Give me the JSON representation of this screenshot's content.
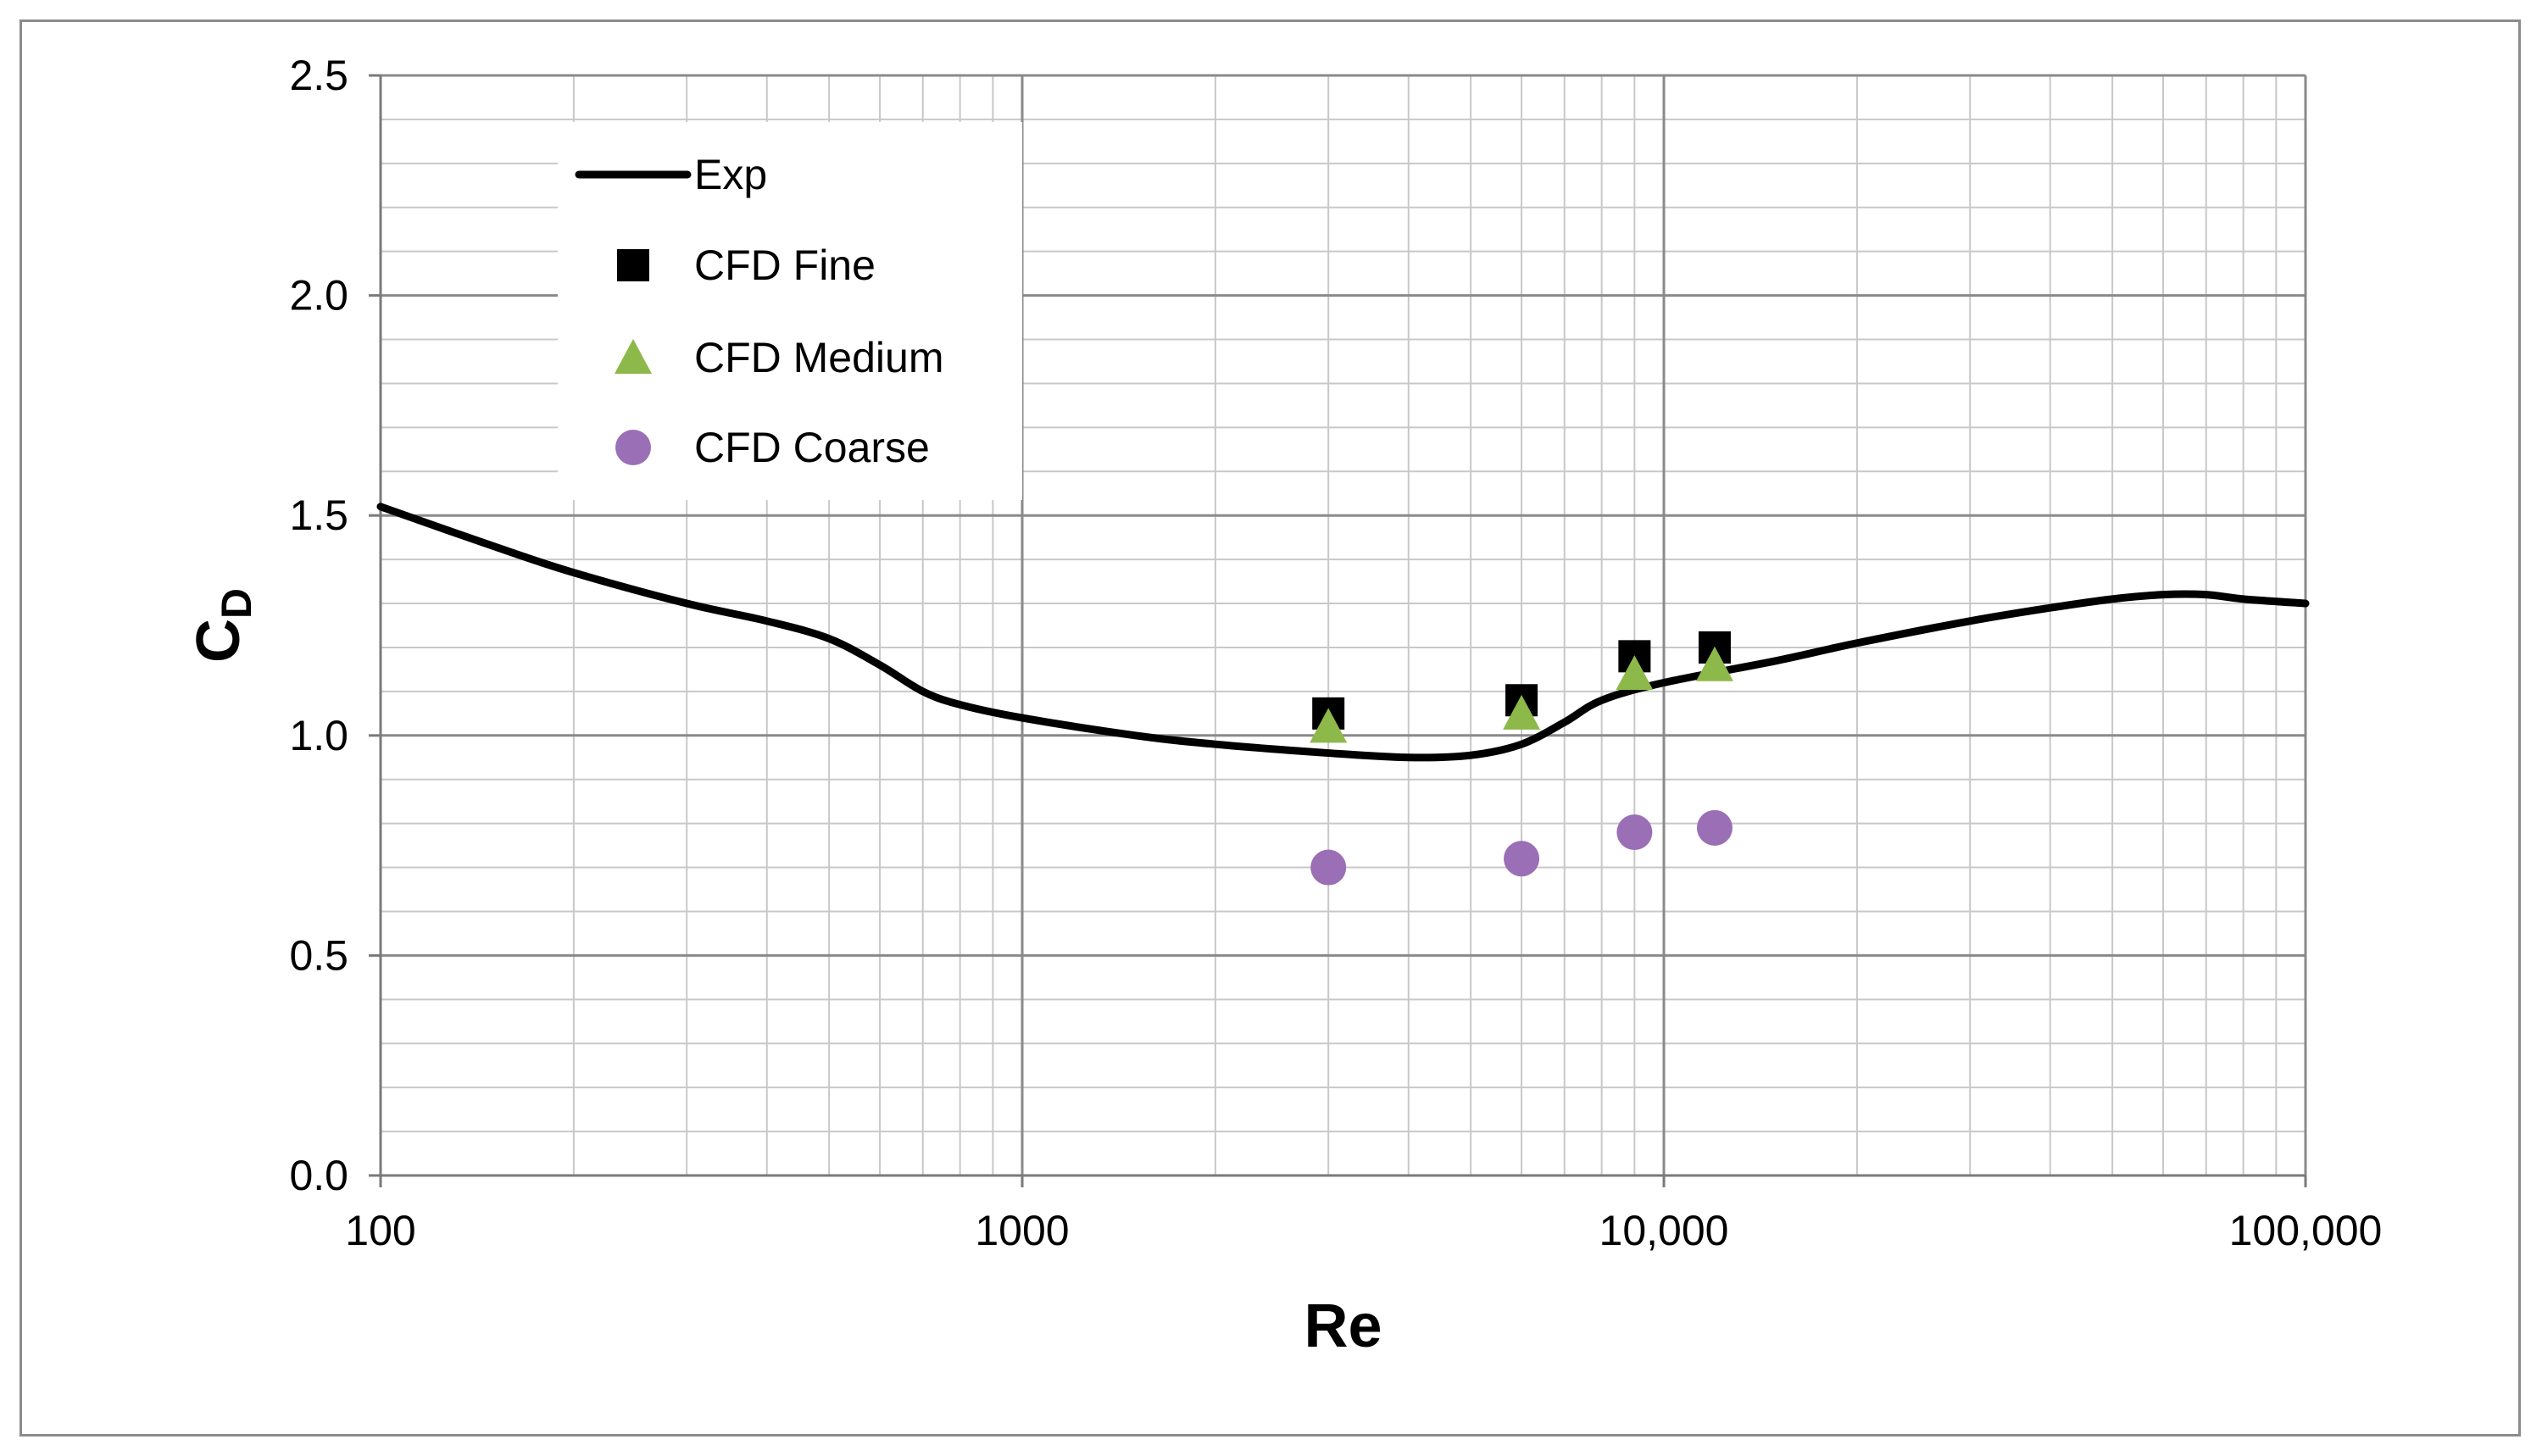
{
  "chart_data": {
    "type": "line",
    "xscale": "log",
    "xlim": [
      100,
      100000
    ],
    "ylim": [
      0,
      2.5
    ],
    "grid": true,
    "xlabel": "Re",
    "ylabel": "C",
    "ylabel_sub": "D",
    "xticks": [
      {
        "value": 100,
        "label": "100"
      },
      {
        "value": 1000,
        "label": "1000"
      },
      {
        "value": 10000,
        "label": "10,000"
      },
      {
        "value": 100000,
        "label": "100,000"
      }
    ],
    "yticks": [
      {
        "value": 0,
        "label": "0.0"
      },
      {
        "value": 0.5,
        "label": "0.5"
      },
      {
        "value": 1.0,
        "label": "1.0"
      },
      {
        "value": 1.5,
        "label": "1.5"
      },
      {
        "value": 2.0,
        "label": "2.0"
      },
      {
        "value": 2.5,
        "label": "2.5"
      }
    ],
    "legend_position": "top-left",
    "series": [
      {
        "name": "Exp",
        "kind": "line",
        "color": "#000000",
        "x": [
          100,
          150,
          200,
          300,
          400,
          500,
          600,
          700,
          800,
          1000,
          1500,
          2000,
          3000,
          4000,
          5000,
          6000,
          7000,
          8000,
          10000,
          15000,
          20000,
          30000,
          40000,
          50000,
          60000,
          70000,
          80000,
          100000
        ],
        "y": [
          1.52,
          1.43,
          1.37,
          1.3,
          1.26,
          1.22,
          1.16,
          1.1,
          1.07,
          1.04,
          1.0,
          0.98,
          0.96,
          0.95,
          0.955,
          0.98,
          1.03,
          1.08,
          1.12,
          1.17,
          1.21,
          1.26,
          1.29,
          1.31,
          1.32,
          1.32,
          1.31,
          1.3
        ]
      },
      {
        "name": "CFD Fine",
        "kind": "marker",
        "marker": "square",
        "color": "#000000",
        "x": [
          3000,
          6000,
          9000,
          12000
        ],
        "y": [
          1.05,
          1.08,
          1.18,
          1.2
        ]
      },
      {
        "name": "CFD Medium",
        "kind": "marker",
        "marker": "triangle",
        "color": "#8db84a",
        "x": [
          3000,
          6000,
          9000,
          12000
        ],
        "y": [
          1.02,
          1.05,
          1.14,
          1.16
        ]
      },
      {
        "name": "CFD Coarse",
        "kind": "marker",
        "marker": "circle",
        "color": "#9a6fb5",
        "x": [
          3000,
          6000,
          9000,
          12000
        ],
        "y": [
          0.7,
          0.72,
          0.78,
          0.79
        ]
      }
    ]
  }
}
